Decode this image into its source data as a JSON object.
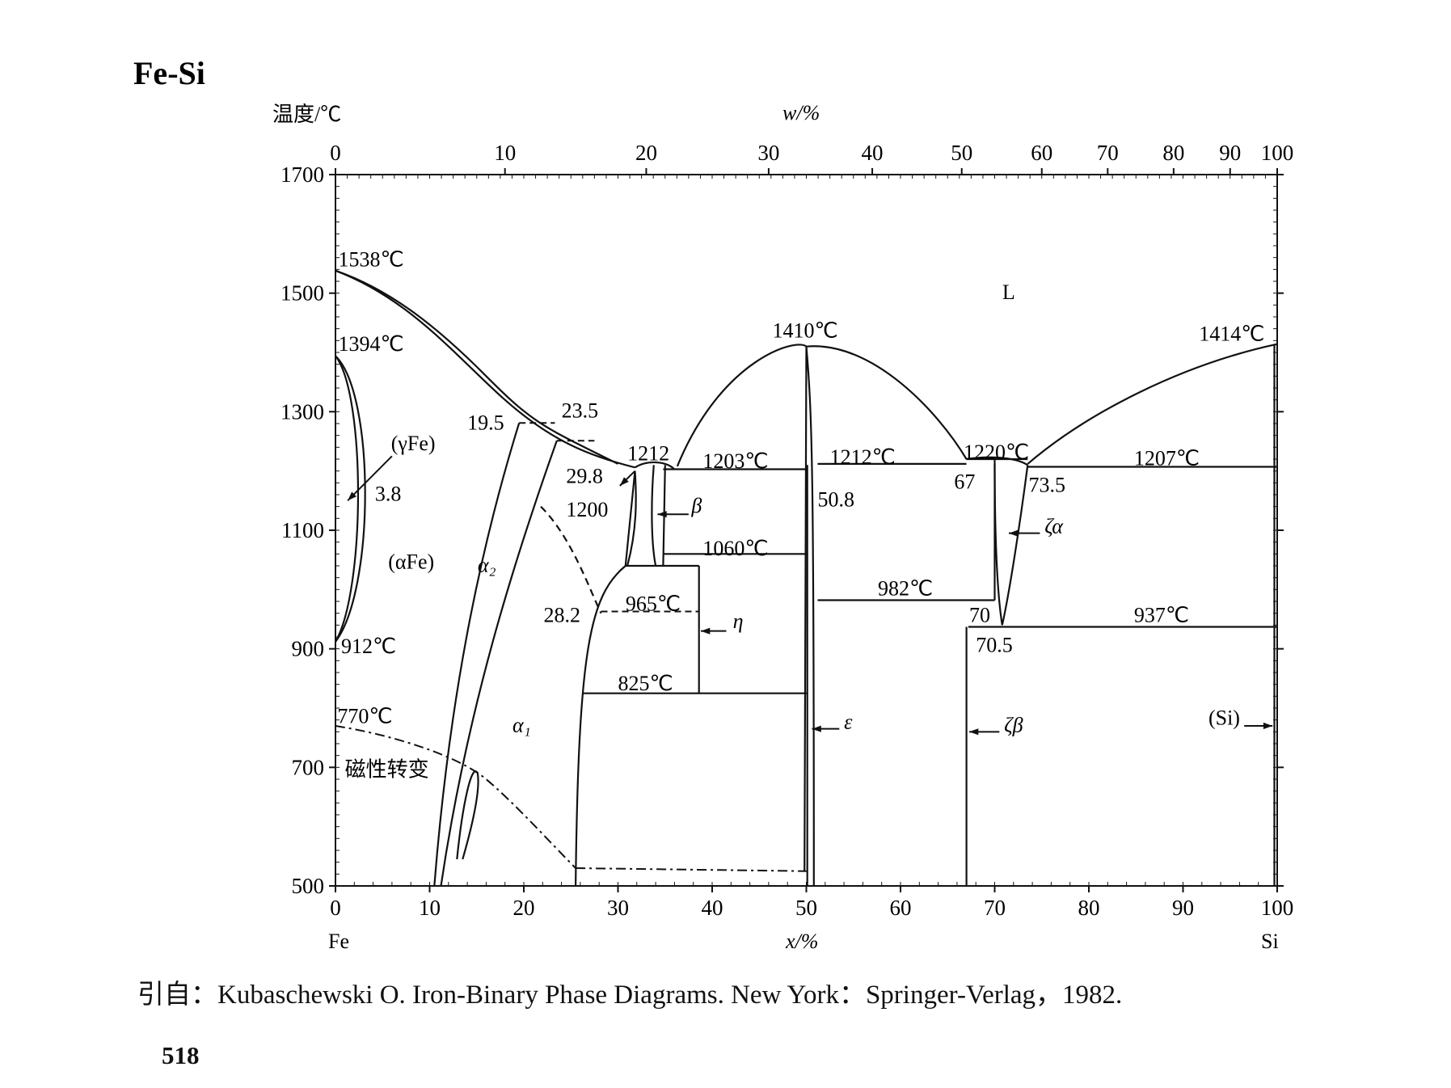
{
  "title": "Fe-Si",
  "footer": {
    "source": "引自：Kubaschewski O. Iron-Binary Phase Diagrams. New York：Springer-Verlag，1982.",
    "page_number": "518"
  },
  "chart_data": {
    "type": "phase_diagram",
    "system": "Fe-Si",
    "ylabel": "温度/℃",
    "xlabel": "x/%",
    "top_axis_label": "w/%",
    "left_end_label": "Fe",
    "right_end_label": "Si",
    "ylim": [
      500,
      1700
    ],
    "xlim": [
      0,
      100
    ],
    "y_ticks": [
      500,
      700,
      900,
      1100,
      1300,
      1500,
      1700
    ],
    "x_ticks": [
      0,
      10,
      20,
      30,
      40,
      50,
      60,
      70,
      80,
      90,
      100
    ],
    "top_ticks": [
      {
        "w": 0,
        "x": 0
      },
      {
        "w": 10,
        "x": 18
      },
      {
        "w": 20,
        "x": 33
      },
      {
        "w": 30,
        "x": 46
      },
      {
        "w": 40,
        "x": 57
      },
      {
        "w": 50,
        "x": 66.5
      },
      {
        "w": 60,
        "x": 75
      },
      {
        "w": 70,
        "x": 82
      },
      {
        "w": 80,
        "x": 89
      },
      {
        "w": 90,
        "x": 95
      },
      {
        "w": 100,
        "x": 100
      }
    ],
    "annotations": [
      {
        "text": "1538℃",
        "x": 0.3,
        "y": 1545
      },
      {
        "text": "1394℃",
        "x": 0.3,
        "y": 1403
      },
      {
        "text": "(γFe)",
        "x": 5.9,
        "y": 1235
      },
      {
        "text": "3.8",
        "x": 4.2,
        "y": 1150
      },
      {
        "text": "(αFe)",
        "x": 5.6,
        "y": 1035
      },
      {
        "text": "912℃",
        "x": 0.6,
        "y": 893
      },
      {
        "text": "770℃",
        "x": 0.2,
        "y": 775
      },
      {
        "text": "磁性转变",
        "x": 1.0,
        "y": 685
      },
      {
        "text": "19.5",
        "x": 14.0,
        "y": 1270
      },
      {
        "text": "23.5",
        "x": 24.0,
        "y": 1290
      },
      {
        "text": "1212",
        "x": 31.0,
        "y": 1218
      },
      {
        "text": "29.8",
        "x": 24.5,
        "y": 1180
      },
      {
        "text": "1200",
        "x": 24.5,
        "y": 1123
      },
      {
        "text": "1203℃",
        "x": 39.0,
        "y": 1205
      },
      {
        "text": "β",
        "x": 37.8,
        "y": 1130
      },
      {
        "text": "1060℃",
        "x": 39.0,
        "y": 1058
      },
      {
        "text": "965℃",
        "x": 30.8,
        "y": 964
      },
      {
        "text": "28.2",
        "x": 22.1,
        "y": 945
      },
      {
        "text": "η",
        "x": 42.2,
        "y": 935
      },
      {
        "text": "825℃",
        "x": 30.0,
        "y": 830
      },
      {
        "text": "α₂",
        "x": 15.1,
        "y": 1030
      },
      {
        "text": "α₁",
        "x": 18.8,
        "y": 760
      },
      {
        "text": "1410℃",
        "x": 46.4,
        "y": 1425
      },
      {
        "text": "L",
        "x": 70.8,
        "y": 1490
      },
      {
        "text": "1414℃",
        "x": 91.7,
        "y": 1420
      },
      {
        "text": "1212℃",
        "x": 52.5,
        "y": 1212
      },
      {
        "text": "50.8",
        "x": 51.2,
        "y": 1140
      },
      {
        "text": "1220℃",
        "x": 66.7,
        "y": 1220
      },
      {
        "text": "67",
        "x": 65.7,
        "y": 1170
      },
      {
        "text": "73.5",
        "x": 73.6,
        "y": 1165
      },
      {
        "text": "1207℃",
        "x": 84.8,
        "y": 1210
      },
      {
        "text": "ζα",
        "x": 75.3,
        "y": 1095
      },
      {
        "text": "982℃",
        "x": 57.6,
        "y": 990
      },
      {
        "text": "70",
        "x": 67.3,
        "y": 945
      },
      {
        "text": "70.5",
        "x": 68.0,
        "y": 895
      },
      {
        "text": "937℃",
        "x": 84.8,
        "y": 945
      },
      {
        "text": "ε",
        "x": 54.0,
        "y": 765
      },
      {
        "text": "ζβ",
        "x": 71.0,
        "y": 760
      },
      {
        "text": "(Si)",
        "x": 92.7,
        "y": 772
      }
    ],
    "invariant_lines": [
      {
        "T": 1203,
        "from": 34.8,
        "to": 50.1
      },
      {
        "T": 1060,
        "from": 34.8,
        "to": 50.1
      },
      {
        "T": 1040,
        "from": 30.8,
        "to": 38.6
      },
      {
        "T": 825,
        "from": 26.2,
        "to": 50.1
      },
      {
        "T": 1212,
        "from": 51.2,
        "to": 67
      },
      {
        "T": 982,
        "from": 51.2,
        "to": 70
      },
      {
        "T": 1220,
        "from": 67,
        "to": 73.5
      },
      {
        "T": 1207,
        "from": 73.5,
        "to": 100
      },
      {
        "T": 937,
        "from": 67.2,
        "to": 100
      }
    ],
    "grid": false
  }
}
